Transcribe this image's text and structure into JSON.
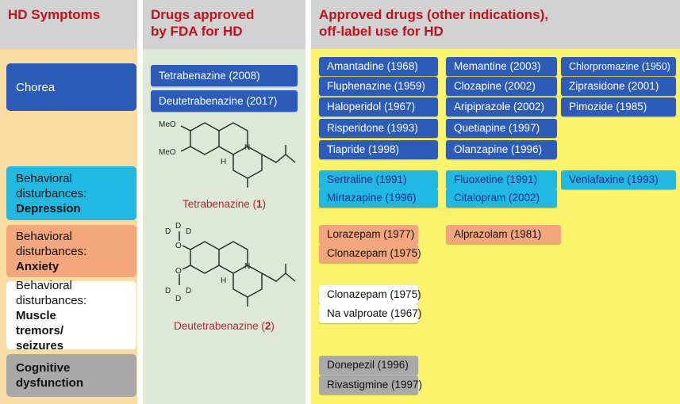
{
  "headers": {
    "symptoms": "HD Symptoms",
    "fda_line1": "Drugs approved",
    "fda_line2": "by FDA for HD",
    "offlabel_line1": "Approved drugs (other indications),",
    "offlabel_line2": "off-label use for HD"
  },
  "symptoms": [
    {
      "line1": "Chorea",
      "line2": "",
      "bold": "",
      "color": "#2c5cb8"
    },
    {
      "line1": "Behavioral",
      "line2": "disturbances:",
      "bold": "Depression",
      "color": "#21b8e2"
    },
    {
      "line1": "Behavioral",
      "line2": "disturbances:",
      "bold": "Anxiety",
      "color": "#f4a67c"
    },
    {
      "line1": "Behavioral",
      "line2": "disturbances:",
      "bold": "Muscle tremors/ seizures",
      "color": "#ffffff"
    },
    {
      "line1": "",
      "line2": "",
      "bold": "Cognitive dysfunction",
      "color": "#a9a9a9"
    }
  ],
  "fda_drugs": [
    "Tetrabenazine (2008)",
    "Deutetrabenazine (2017)"
  ],
  "molecules": [
    {
      "name": "Tetrabenazine",
      "number": "1",
      "substituent": "MeO"
    },
    {
      "name": "Deutetrabenazine",
      "number": "2",
      "substituent": "D"
    }
  ],
  "offlabel": {
    "chorea": [
      [
        "Amantadine (1968)",
        "Memantine (2003)",
        "Chlorpromazine (1950)"
      ],
      [
        "Fluphenazine (1959)",
        "Clozapine (2002)",
        "Ziprasidone (2001)"
      ],
      [
        "Haloperidol (1967)",
        "Aripiprazole (2002)",
        "Pimozide (1985)"
      ],
      [
        "Risperidone (1993)",
        "Quetiapine (1997)"
      ],
      [
        "Tiapride (1998)",
        "Olanzapine (1996)"
      ]
    ],
    "depression": [
      [
        "Sertraline (1991)",
        "Fluoxetine (1991)",
        "Venlafaxine (1993)"
      ],
      [
        "Mirtazapine (1996)",
        "Citalopram (2002)"
      ]
    ],
    "anxiety": [
      [
        "Lorazepam (1977)",
        "Alprazolam (1981)"
      ],
      [
        "Clonazepam (1975)"
      ]
    ],
    "seizures": [
      [
        "Clonazepam (1975)"
      ],
      [
        "Na valproate (1967)"
      ]
    ],
    "cognitive": [
      [
        "Donepezil (1996)"
      ],
      [
        "Rivastigmine (1997)"
      ]
    ]
  },
  "colors": {
    "col1_bg": "#f8dca4",
    "col2_bg": "#dde9d6",
    "col3_bg": "#fbf36c",
    "header_text": "#c0121a"
  }
}
